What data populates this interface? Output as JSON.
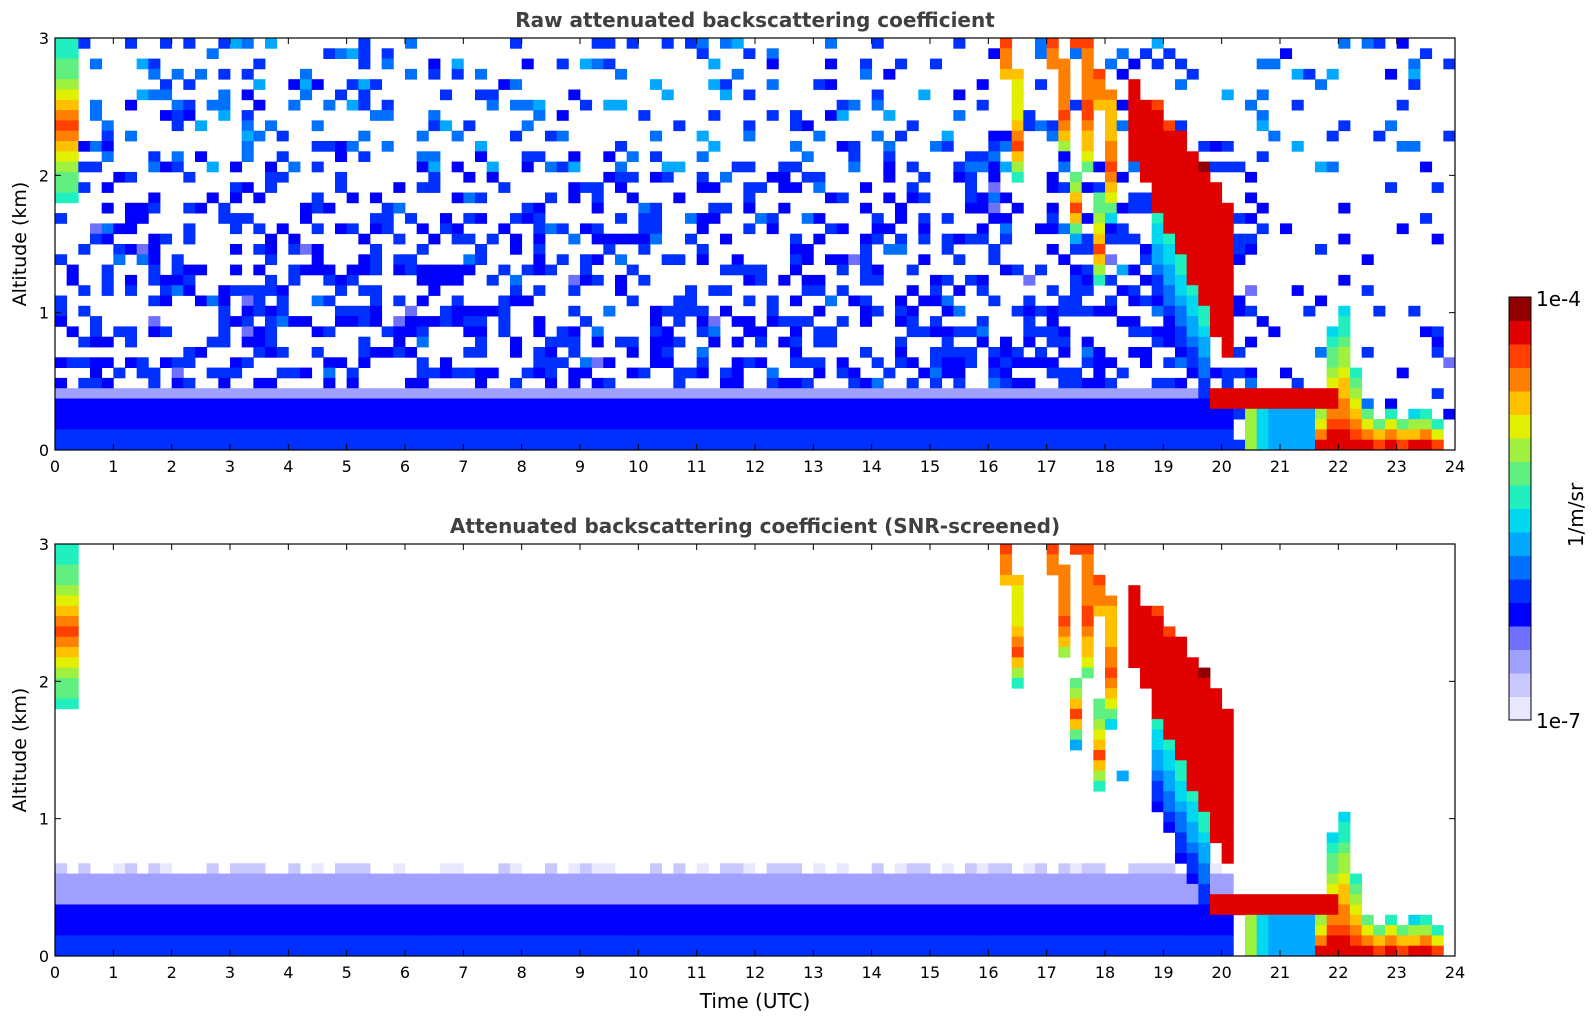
{
  "chart_data": [
    {
      "type": "heatmap",
      "title": "Raw attenuated backscattering coefficient",
      "xlabel": "",
      "ylabel": "Altitude (km)",
      "xlim": [
        0,
        24
      ],
      "ylim": [
        0,
        3
      ],
      "x_ticks": [
        "0",
        "1",
        "2",
        "3",
        "4",
        "5",
        "6",
        "7",
        "8",
        "9",
        "10",
        "11",
        "12",
        "13",
        "14",
        "15",
        "16",
        "17",
        "18",
        "19",
        "20",
        "21",
        "22",
        "23",
        "24"
      ],
      "y_ticks": [
        "0",
        "1",
        "2",
        "3"
      ],
      "screened": false,
      "features": [
        {
          "name": "boundary-layer aerosol",
          "time": [
            0,
            20.2
          ],
          "altitude": [
            0,
            0.45
          ]
        },
        {
          "name": "early cloud",
          "time": [
            0,
            0.35
          ],
          "altitude": [
            1.8,
            3.0
          ]
        },
        {
          "name": "descending cloud streaks",
          "time": [
            16.1,
            20.2
          ],
          "altitude": [
            0.7,
            3.0
          ]
        },
        {
          "name": "low cloud layer",
          "time": [
            19.8,
            22.0
          ],
          "altitude": [
            0.3,
            0.5
          ]
        },
        {
          "name": "surface strong layer",
          "time": [
            21.5,
            23.9
          ],
          "altitude": [
            0,
            1.05
          ]
        }
      ]
    },
    {
      "type": "heatmap",
      "title": "Attenuated backscattering coefficient (SNR-screened)",
      "xlabel": "Time (UTC)",
      "ylabel": "Altitude (km)",
      "xlim": [
        0,
        24
      ],
      "ylim": [
        0,
        3
      ],
      "x_ticks": [
        "0",
        "1",
        "2",
        "3",
        "4",
        "5",
        "6",
        "7",
        "8",
        "9",
        "10",
        "11",
        "12",
        "13",
        "14",
        "15",
        "16",
        "17",
        "18",
        "19",
        "20",
        "21",
        "22",
        "23",
        "24"
      ],
      "y_ticks": [
        "0",
        "1",
        "2",
        "3"
      ],
      "screened": true,
      "features": [
        {
          "name": "boundary-layer aerosol",
          "time": [
            0,
            20.2
          ],
          "altitude": [
            0,
            0.65
          ]
        },
        {
          "name": "early cloud",
          "time": [
            0,
            0.35
          ],
          "altitude": [
            1.8,
            3.0
          ]
        },
        {
          "name": "descending cloud streaks",
          "time": [
            16.1,
            20.2
          ],
          "altitude": [
            0.7,
            3.0
          ]
        },
        {
          "name": "low cloud layer",
          "time": [
            19.8,
            22.0
          ],
          "altitude": [
            0.3,
            0.55
          ]
        },
        {
          "name": "surface strong layer",
          "time": [
            21.5,
            23.9
          ],
          "altitude": [
            0,
            1.05
          ]
        }
      ]
    }
  ],
  "colorbar": {
    "label": "1/m/sr",
    "max_label": "1e-4",
    "min_label": "1e-7",
    "colors": [
      "#e8e8ff",
      "#c8c8ff",
      "#a0a0ff",
      "#7070ff",
      "#0000ff",
      "#0030ff",
      "#0070ff",
      "#00a8ff",
      "#00d8f0",
      "#20f0c0",
      "#60f080",
      "#a0f040",
      "#e0f000",
      "#ffc000",
      "#ff8000",
      "#ff4000",
      "#e00000",
      "#900000"
    ]
  }
}
